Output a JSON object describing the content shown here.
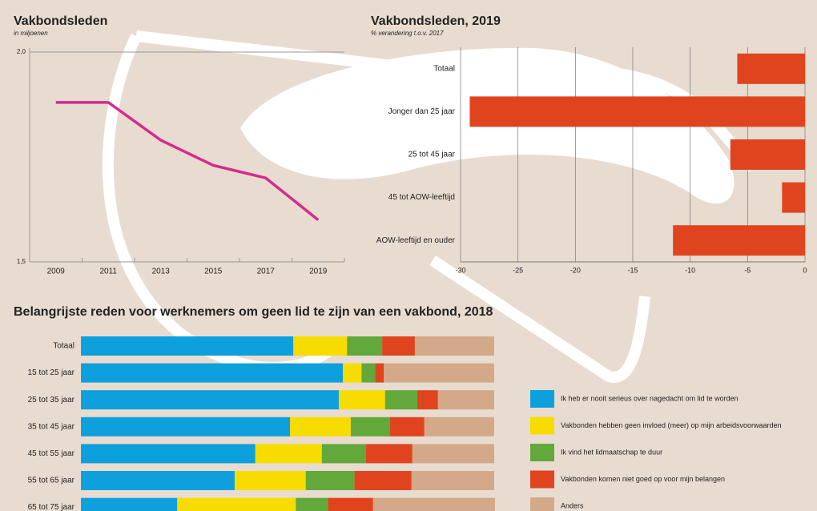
{
  "chart_data": [
    {
      "type": "line",
      "title": "Vakbondsleden",
      "subtitle": "in miljoenen",
      "x": [
        2009,
        2011,
        2013,
        2015,
        2017,
        2019
      ],
      "values": [
        1.88,
        1.88,
        1.79,
        1.73,
        1.7,
        1.6
      ],
      "color": "#d62a8c",
      "xlim": [
        2008,
        2020
      ],
      "xticks": [
        2009,
        2011,
        2013,
        2015,
        2017,
        2019
      ],
      "ylim": [
        1.5,
        2.0
      ],
      "yticks": [
        {
          "value": 1.5,
          "label": "1,5"
        },
        {
          "value": 2.0,
          "label": "2,0"
        }
      ]
    },
    {
      "type": "bar",
      "orientation": "horizontal",
      "title": "Vakbondsleden, 2019",
      "subtitle": "% verandering t.o.v. 2017",
      "categories": [
        "Totaal",
        "Jonger dan 25 jaar",
        "25 tot 45 jaar",
        "45 tot AOW-leeftijd",
        "AOW-leeftijd en ouder"
      ],
      "values": [
        -5.9,
        -29.2,
        -6.5,
        -2.0,
        -11.5
      ],
      "color": "#e0441f",
      "xlim": [
        -30,
        0
      ],
      "xticks": [
        -30,
        -25,
        -20,
        -15,
        -10,
        -5,
        0
      ],
      "grid": true
    },
    {
      "type": "stacked_bar",
      "orientation": "horizontal",
      "title": "Belangrijste reden voor werknemers om geen lid te zijn van een vakbond, 2018",
      "categories": [
        "Totaal",
        "15 tot 25 jaar",
        "25 tot 35 jaar",
        "35 tot 45 jaar",
        "45 tot 55 jaar",
        "55 tot 65 jaar",
        "65 tot 75 jaar"
      ],
      "xlim": [
        0,
        100
      ],
      "series": [
        {
          "name": "Ik heb er nooit serieus over nagedacht om lid te worden",
          "color": "#0da0dc",
          "values": [
            51.4,
            63.4,
            62.4,
            50.6,
            42.2,
            37.2,
            23.3
          ]
        },
        {
          "name": "Vakbonden hebben geen invloed (meer) op mijn arbeidsvoorwaarden",
          "color": "#f7dc00",
          "values": [
            13.0,
            4.5,
            11.2,
            14.7,
            16.1,
            17.2,
            28.7
          ]
        },
        {
          "name": "Ik vind het lidmaatschap te duur",
          "color": "#62a83a",
          "values": [
            8.5,
            3.3,
            7.8,
            9.5,
            10.7,
            11.8,
            7.8
          ]
        },
        {
          "name": "Vakbonden komen niet goed op voor mijn belangen",
          "color": "#e0441f",
          "values": [
            7.9,
            2.1,
            5.0,
            8.3,
            11.2,
            13.8,
            10.9
          ]
        },
        {
          "name": "Anders",
          "color": "#d4a98a",
          "values": [
            19.2,
            26.7,
            13.6,
            16.9,
            19.8,
            20.0,
            29.5
          ]
        }
      ]
    }
  ]
}
